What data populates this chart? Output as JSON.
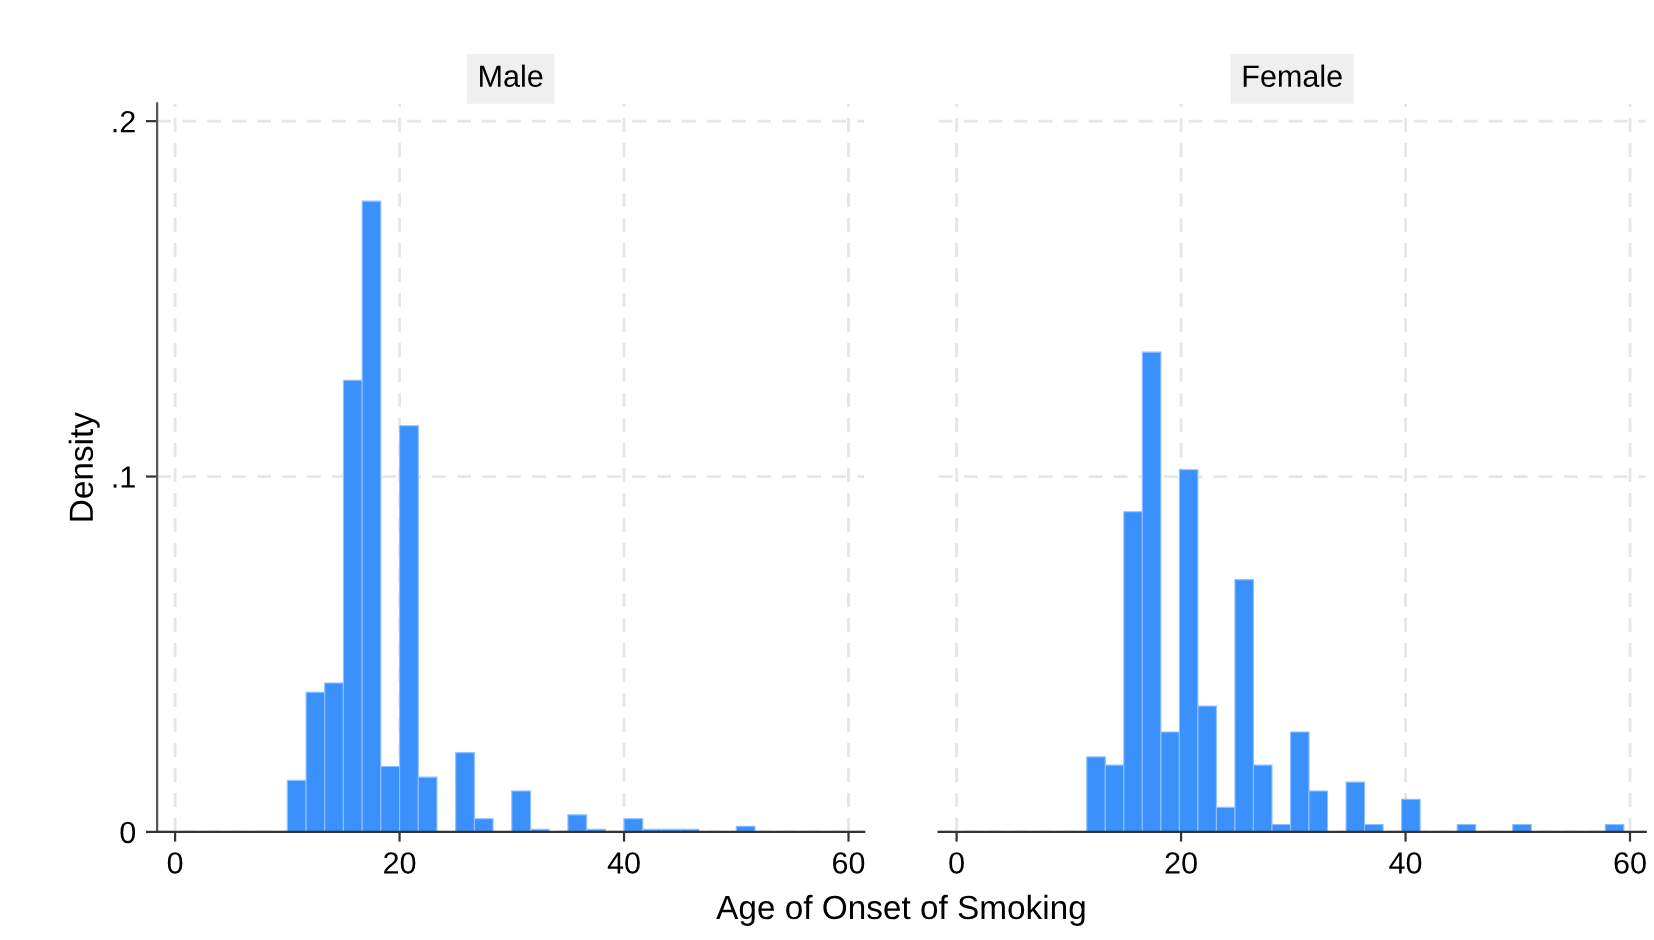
{
  "chart_data": [
    {
      "type": "histogram",
      "title": "Male",
      "ylabel": "Density",
      "xlabel": "Age of Onset of Smoking",
      "color": "#3a91fb",
      "bins": [
        10,
        11.67,
        13.33,
        15,
        16.67,
        18.33,
        20,
        21.67,
        23.33,
        25,
        26.67,
        28.33,
        30,
        31.67,
        33.33,
        35,
        36.67,
        38.33,
        40,
        41.67,
        43.33,
        45,
        46.67,
        48.33,
        50,
        51.67
      ],
      "values": [
        0.0145,
        0.0393,
        0.0419,
        0.1271,
        0.1775,
        0.0184,
        0.1143,
        0.0154,
        0,
        0.0223,
        0.0037,
        0,
        0.0115,
        0.0007,
        0,
        0.0048,
        0.0007,
        0,
        0.0037,
        0.0007,
        0.0007,
        0.0007,
        0,
        0,
        0.0016
      ],
      "xlim": [
        -1.6,
        61.4
      ],
      "ylim": [
        0,
        0.205
      ],
      "xticks": [
        0,
        20,
        40,
        60
      ],
      "yticks": [
        0,
        {
          "value": 0.1,
          "label": ".1"
        },
        {
          "value": 0.2,
          "label": ".2"
        }
      ],
      "grid": true
    },
    {
      "type": "histogram",
      "title": "Female",
      "color": "#3a91fb",
      "bins": [
        11.6,
        13.25,
        14.9,
        16.55,
        18.2,
        19.85,
        21.5,
        23.15,
        24.8,
        26.45,
        28.1,
        29.75,
        31.4,
        33.05,
        34.7,
        36.35,
        38,
        39.65,
        41.3,
        42.95,
        44.6,
        46.25,
        47.9,
        49.55,
        51.2,
        52.85,
        54.5,
        56.15,
        57.8,
        59.45
      ],
      "values": [
        0.0211,
        0.0188,
        0.0901,
        0.135,
        0.0281,
        0.1019,
        0.0354,
        0.0069,
        0.071,
        0.0188,
        0.0021,
        0.0281,
        0.0115,
        0,
        0.014,
        0.0021,
        0,
        0.0092,
        0,
        0,
        0.0021,
        0,
        0,
        0.0021,
        0,
        0,
        0,
        0,
        0.0021
      ],
      "xlim": [
        -1.6,
        61.4
      ],
      "ylim": [
        0,
        0.205
      ],
      "xticks": [
        0,
        20,
        40,
        60
      ],
      "yticks": [
        {
          "value": 0,
          "label": null
        },
        {
          "value": 0.1,
          "label": null
        },
        {
          "value": 0.2,
          "label": null
        }
      ],
      "grid": true,
      "tick_labels": "x"
    }
  ]
}
